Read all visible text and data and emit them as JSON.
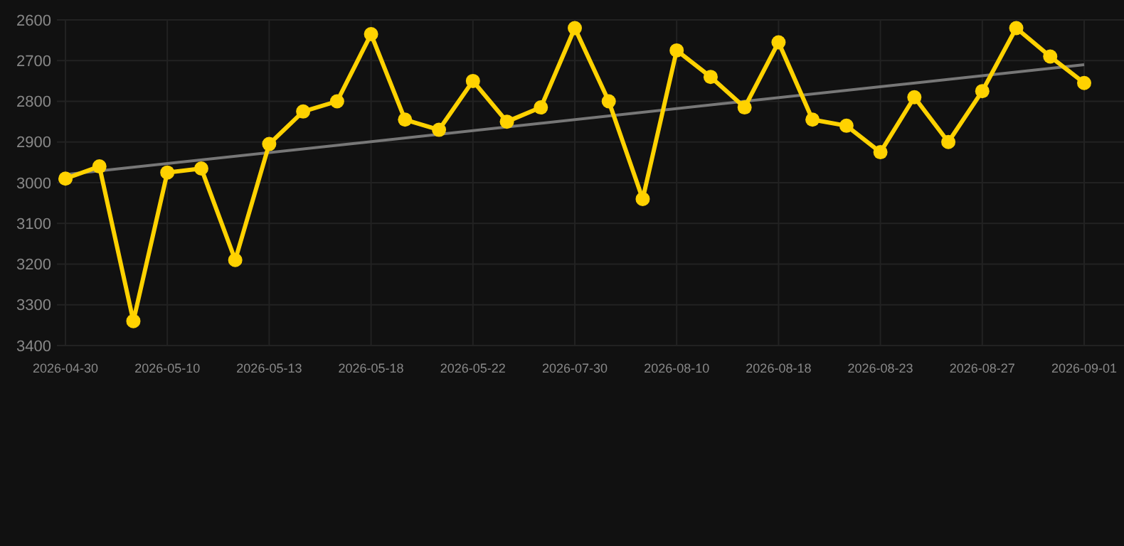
{
  "chart_data": {
    "type": "line",
    "categories": [
      "2026-04-30",
      null,
      null,
      "2026-05-10",
      null,
      null,
      "2026-05-13",
      null,
      null,
      "2026-05-18",
      null,
      null,
      "2026-05-22",
      null,
      null,
      "2026-07-30",
      null,
      null,
      "2026-08-10",
      null,
      null,
      "2026-08-18",
      null,
      null,
      "2026-08-23",
      null,
      null,
      "2026-08-27",
      null,
      null,
      "2026-09-01"
    ],
    "ylim": [
      3400,
      2600
    ],
    "yticks": [
      2600,
      2700,
      2800,
      2900,
      3000,
      3100,
      3200,
      3300,
      3400
    ],
    "grid": true,
    "marker": "circle",
    "line_style": "solid",
    "series": [
      {
        "color": "#ffd200",
        "values": [
          2990,
          2960,
          3340,
          2975,
          2965,
          3190,
          2905,
          2825,
          2800,
          2635,
          2845,
          2870,
          2750,
          2850,
          2815,
          2620,
          2800,
          3040,
          2675,
          2740,
          2815,
          2655,
          2845,
          2860,
          2925,
          2790,
          2900,
          2775,
          2620,
          2690,
          2755
        ]
      },
      {
        "color": "#777777",
        "marker": "none",
        "values": [
          2980,
          null,
          null,
          null,
          null,
          null,
          null,
          null,
          null,
          null,
          null,
          null,
          null,
          null,
          null,
          null,
          null,
          null,
          null,
          null,
          null,
          null,
          null,
          null,
          null,
          null,
          null,
          null,
          null,
          null,
          2710
        ]
      }
    ]
  }
}
